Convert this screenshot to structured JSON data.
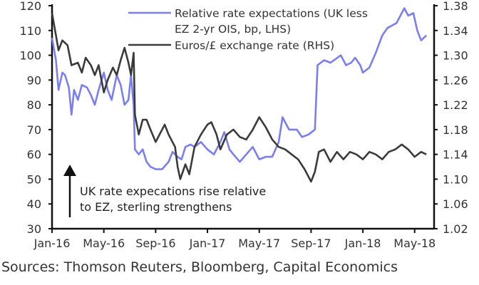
{
  "chart_data": {
    "type": "line",
    "xlabel": "",
    "ylabel_left": "",
    "ylabel_right": "",
    "x_ticks": [
      0,
      4,
      8,
      12,
      16,
      20,
      24,
      28
    ],
    "x_tick_labels": [
      "Jan-16",
      "May-16",
      "Sep-16",
      "Jan-17",
      "May-17",
      "Sep-17",
      "Jan-18",
      "May-18"
    ],
    "x_unit": "months since Jan-16",
    "xlim": [
      0,
      29.5
    ],
    "ylim_left": [
      30,
      120
    ],
    "y_ticks_left": [
      "30",
      "40",
      "50",
      "60",
      "70",
      "80",
      "90",
      "100",
      "110",
      "120"
    ],
    "ylim_right": [
      1.02,
      1.38
    ],
    "y_ticks_right": [
      "1.02",
      "1.06",
      "1.10",
      "1.14",
      "1.18",
      "1.22",
      "1.26",
      "1.30",
      "1.34",
      "1.38"
    ],
    "series": [
      {
        "name": "Relative rate expectations (UK less EZ 2-yr OIS, bp, LHS)",
        "legend_lines": [
          "Relative rate expectations (UK less",
          "EZ 2-yr OIS, bp, LHS)"
        ],
        "axis": "left",
        "color": "#7a7ef0",
        "x": [
          0,
          0.3,
          0.5,
          0.8,
          1,
          1.3,
          1.5,
          1.7,
          2,
          2.3,
          2.7,
          3,
          3.3,
          3.6,
          4,
          4.3,
          4.6,
          5,
          5.3,
          5.6,
          5.9,
          6.1,
          6.3,
          6.4,
          6.7,
          7,
          7.3,
          7.6,
          8,
          8.5,
          9,
          9.3,
          9.7,
          10,
          10.3,
          10.7,
          11,
          11.5,
          12,
          12.5,
          13,
          13.3,
          13.7,
          14,
          14.5,
          15,
          15.5,
          16,
          16.5,
          17,
          17.5,
          17.8,
          18.3,
          18.9,
          19.3,
          19.8,
          20.3,
          20.5,
          21,
          21.5,
          22.3,
          22.7,
          23.1,
          23.4,
          23.8,
          24,
          24.5,
          25,
          25.5,
          25.9,
          26.6,
          27.2,
          27.5,
          27.9,
          28.2,
          28.5,
          28.9
        ],
        "values": [
          107,
          98,
          86,
          93,
          92,
          87,
          76,
          86,
          82,
          88,
          87,
          84,
          80,
          86,
          93,
          86,
          82,
          92,
          88,
          80,
          82,
          92,
          80,
          62,
          60,
          62,
          57,
          55,
          54,
          54,
          57,
          61,
          59,
          58,
          63,
          64,
          63,
          65,
          62,
          60,
          65,
          69,
          62,
          60,
          57,
          60,
          63,
          58,
          59,
          59,
          65,
          75,
          70,
          70,
          67,
          68,
          70,
          96,
          98,
          97,
          100,
          96,
          97,
          99,
          96,
          93,
          95,
          101,
          108,
          111,
          113,
          119,
          116,
          117,
          110,
          106,
          108
        ]
      },
      {
        "name": "Euros/£ exchange rate (RHS)",
        "legend_lines": [
          "Euros/£ exchange rate (RHS)"
        ],
        "axis": "right",
        "color": "#3a3a3a",
        "x": [
          0,
          0.3,
          0.5,
          0.8,
          1.2,
          1.5,
          2,
          2.3,
          2.6,
          3,
          3.3,
          3.6,
          4,
          4.3,
          4.7,
          5,
          5.3,
          5.6,
          5.9,
          6.1,
          6.3,
          6.4,
          6.7,
          7,
          7.3,
          7.6,
          8,
          8.3,
          8.7,
          9,
          9.5,
          9.7,
          9.9,
          10.3,
          10.6,
          11,
          11.5,
          12,
          12.3,
          12.7,
          13,
          13.5,
          14,
          14.5,
          15,
          15.5,
          16,
          16.5,
          17,
          17.5,
          18,
          18.5,
          19,
          19.5,
          20,
          20.3,
          20.6,
          21,
          21.5,
          22,
          22.5,
          23,
          23.5,
          24,
          24.5,
          25,
          25.5,
          26,
          26.5,
          27,
          27.5,
          28,
          28.5,
          28.9
        ],
        "values": [
          1.368,
          1.332,
          1.308,
          1.324,
          1.316,
          1.284,
          1.288,
          1.272,
          1.296,
          1.284,
          1.268,
          1.284,
          1.24,
          1.26,
          1.28,
          1.268,
          1.292,
          1.312,
          1.288,
          1.268,
          1.304,
          1.204,
          1.172,
          1.196,
          1.196,
          1.18,
          1.16,
          1.172,
          1.188,
          1.172,
          1.152,
          1.12,
          1.1,
          1.124,
          1.108,
          1.152,
          1.172,
          1.188,
          1.192,
          1.172,
          1.148,
          1.172,
          1.18,
          1.168,
          1.164,
          1.18,
          1.2,
          1.184,
          1.164,
          1.152,
          1.148,
          1.14,
          1.132,
          1.116,
          1.096,
          1.112,
          1.144,
          1.148,
          1.128,
          1.144,
          1.132,
          1.144,
          1.14,
          1.132,
          1.144,
          1.14,
          1.132,
          1.144,
          1.148,
          1.156,
          1.148,
          1.136,
          1.144,
          1.14
        ]
      }
    ],
    "annotation": [
      "UK rate expecations rise relative",
      "to EZ, sterling strengthens"
    ],
    "legend_placement": "top-center",
    "grid": false
  },
  "source": "Sources: Thomson Reuters, Bloomberg, Capital Economics"
}
